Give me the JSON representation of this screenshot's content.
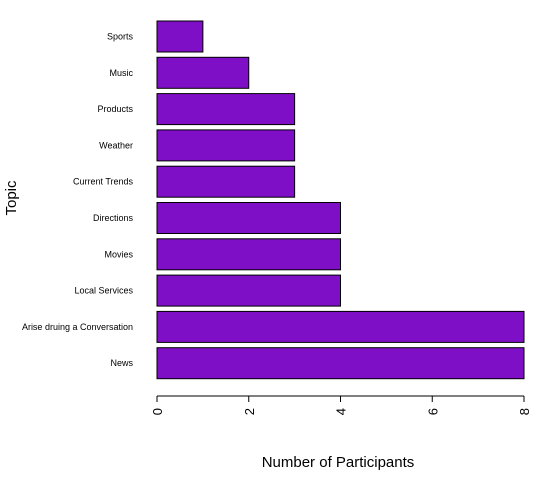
{
  "chart_data": {
    "type": "bar",
    "orientation": "horizontal",
    "categories": [
      "Sports",
      "Music",
      "Products",
      "Weather",
      "Current Trends",
      "Directions",
      "Movies",
      "Local Services",
      "Arise druing a Conversation",
      "News"
    ],
    "values": [
      1,
      2,
      3,
      3,
      3,
      4,
      4,
      4,
      8,
      8
    ],
    "xlabel": "Number of Participants",
    "ylabel": "Topic",
    "xticks": [
      "0",
      "2",
      "4",
      "6",
      "8"
    ],
    "xlim": [
      0,
      8
    ],
    "bar_color": "#7f0fc7",
    "grid": false,
    "legend": "none"
  }
}
